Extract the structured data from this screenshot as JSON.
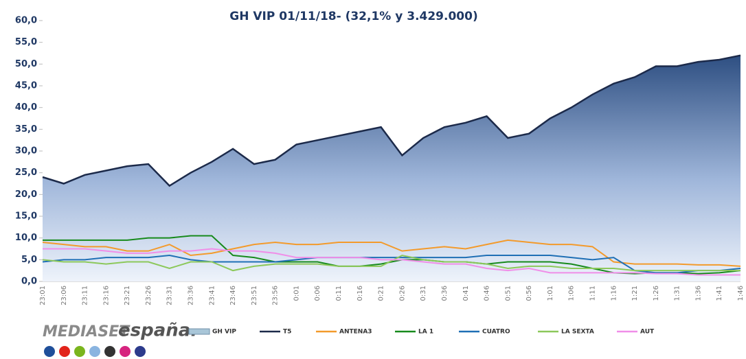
{
  "chart_data": {
    "type": "line",
    "title": "GH VIP 01/11/18- (32,1% y 3.429.000)",
    "categories": [
      "23:01",
      "23:06",
      "23:11",
      "23:16",
      "23:21",
      "23:26",
      "23:31",
      "23:36",
      "23:41",
      "23:46",
      "23:51",
      "23:56",
      "0:01",
      "0:06",
      "0:11",
      "0:16",
      "0:21",
      "0:26",
      "0:31",
      "0:36",
      "0:41",
      "0:46",
      "0:51",
      "0:56",
      "1:01",
      "1:06",
      "1:11",
      "1:16",
      "1:21",
      "1:26",
      "1:31",
      "1:36",
      "1:41",
      "1:46"
    ],
    "series": [
      {
        "name": "GH VIP",
        "color": "#3b5b8f",
        "area": true,
        "values": [
          24,
          22.5,
          24.5,
          25.5,
          26.5,
          27,
          22,
          25,
          27.5,
          30.5,
          27,
          28,
          31.5,
          32.5,
          33.5,
          34.5,
          35.5,
          29,
          33,
          35.5,
          36.5,
          38,
          33,
          34,
          37.5,
          40,
          43,
          45.5,
          47,
          49.5,
          49.5,
          50.5,
          51,
          52
        ]
      },
      {
        "name": "T5",
        "color": "#1c2a4a",
        "values": [
          24,
          22.5,
          24.5,
          25.5,
          26.5,
          27,
          22,
          25,
          27.5,
          30.5,
          27,
          28,
          31.5,
          32.5,
          33.5,
          34.5,
          35.5,
          29,
          33,
          35.5,
          36.5,
          38,
          33,
          34,
          37.5,
          40,
          43,
          45.5,
          47,
          49.5,
          49.5,
          50.5,
          51,
          52
        ]
      },
      {
        "name": "ANTENA3",
        "color": "#f39a2b",
        "values": [
          9,
          8.5,
          8,
          8,
          7,
          7,
          8.5,
          6,
          6.5,
          7.5,
          8.5,
          9,
          8.5,
          8.5,
          9,
          9,
          9,
          7,
          7.5,
          8,
          7.5,
          8.5,
          9.5,
          9,
          8.5,
          8.5,
          8,
          4.5,
          4,
          4,
          4,
          3.8,
          3.8,
          3.5
        ]
      },
      {
        "name": "LA 1",
        "color": "#178a1c",
        "values": [
          9.5,
          9.5,
          9.5,
          9.5,
          9.5,
          10,
          10,
          10.5,
          10.5,
          6,
          5.5,
          4.5,
          4.5,
          4.5,
          3.5,
          3.5,
          4,
          5,
          5,
          4.5,
          4.5,
          4,
          4.5,
          4.5,
          4.5,
          4,
          3,
          2,
          1.8,
          2,
          2,
          1.8,
          2,
          2.5
        ]
      },
      {
        "name": "CUATRO",
        "color": "#1f6fb5",
        "values": [
          4.5,
          5,
          5,
          5.5,
          5.5,
          5.5,
          6,
          5,
          4.5,
          4.5,
          4.5,
          4.5,
          5,
          5.5,
          5.5,
          5.5,
          5.5,
          5.5,
          5.5,
          5.5,
          5.5,
          6,
          6,
          6,
          6,
          5.5,
          5,
          5.5,
          2.5,
          2,
          2,
          2.5,
          2.5,
          3
        ]
      },
      {
        "name": "LA SEXTA",
        "color": "#8cc85a",
        "values": [
          5,
          4.5,
          4.5,
          4,
          4.5,
          4.5,
          3,
          4.5,
          4.5,
          2.5,
          3.5,
          4,
          4,
          4,
          3.5,
          3.5,
          3.5,
          6,
          5,
          4.5,
          4.5,
          4,
          3,
          3.5,
          3.5,
          3,
          3,
          3,
          2.5,
          2.5,
          2.5,
          2.5,
          2.5,
          2.5
        ]
      },
      {
        "name": "AUT",
        "color": "#f08ee8",
        "values": [
          7.5,
          7.5,
          7.5,
          7,
          6.5,
          6.5,
          7,
          7,
          7.5,
          7,
          7,
          6.5,
          5.5,
          5.5,
          5.5,
          5.5,
          5,
          5,
          4.5,
          4,
          4,
          3,
          2.5,
          3,
          2,
          2,
          2,
          2,
          2,
          1.8,
          1.8,
          1.5,
          1.5,
          1.5
        ]
      }
    ],
    "ylim": [
      0,
      60
    ],
    "yticks": [
      {
        "value": 0,
        "label": "0,0"
      },
      {
        "value": 5,
        "label": "5,0"
      },
      {
        "value": 10,
        "label": "10,0"
      },
      {
        "value": 15,
        "label": "15,0"
      },
      {
        "value": 20,
        "label": "20,0"
      },
      {
        "value": 25,
        "label": "25,0"
      },
      {
        "value": 30,
        "label": "30,0"
      },
      {
        "value": 35,
        "label": "35,0"
      },
      {
        "value": 40,
        "label": "40,0"
      },
      {
        "value": 45,
        "label": "45,0"
      },
      {
        "value": 50,
        "label": "50,0"
      },
      {
        "value": 55,
        "label": "55,0"
      },
      {
        "value": 60,
        "label": "60,0"
      }
    ],
    "grid": false,
    "legend": "bottom"
  },
  "logo": {
    "brand": "MEDIASET",
    "suffix": "españa."
  }
}
